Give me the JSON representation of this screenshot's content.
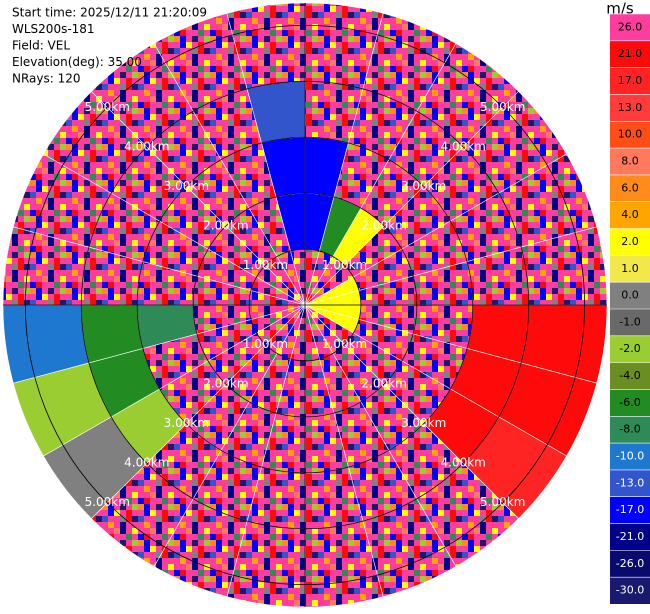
{
  "chart_data": {
    "type": "ppi",
    "header": [
      "Start time: 2025/12/11 21:20:09",
      "WLS200s-181",
      "Field: VEL",
      "Elevation(deg): 35.00",
      "NRays: 120"
    ],
    "colorbar_title": "m/s",
    "colorbar_ticks": [
      {
        "value": 26,
        "label": "26.0"
      },
      {
        "value": 21,
        "label": "21.0"
      },
      {
        "value": 17,
        "label": "17.0"
      },
      {
        "value": 13,
        "label": "13.0"
      },
      {
        "value": 10,
        "label": "10.0"
      },
      {
        "value": 8,
        "label": "8.0"
      },
      {
        "value": 6,
        "label": "6.0"
      },
      {
        "value": 4,
        "label": "4.0"
      },
      {
        "value": 2,
        "label": "2.0"
      },
      {
        "value": 1,
        "label": "1.0"
      },
      {
        "value": 0,
        "label": "0.0"
      },
      {
        "value": -1,
        "label": "-1.0"
      },
      {
        "value": -2,
        "label": "-2.0"
      },
      {
        "value": -4,
        "label": "-4.0"
      },
      {
        "value": -6,
        "label": "-6.0"
      },
      {
        "value": -8,
        "label": "-8.0"
      },
      {
        "value": -10,
        "label": "-10.0"
      },
      {
        "value": -13,
        "label": "-13.0"
      },
      {
        "value": -17,
        "label": "-17.0"
      },
      {
        "value": -21,
        "label": "-21.0"
      },
      {
        "value": -26,
        "label": "-26.0"
      },
      {
        "value": -30,
        "label": "-30.0"
      }
    ],
    "colors": [
      "#ff3d9e",
      "#ff0a0a",
      "#ff2424",
      "#ff3b3b",
      "#ff4d1a",
      "#ff7a5c",
      "#ff8c1a",
      "#ffa500",
      "#ffff00",
      "#f2e84a",
      "#808080",
      "#696969",
      "#9acd32",
      "#6b8e23",
      "#228b22",
      "#2e8b57",
      "#1e78d0",
      "#3355cc",
      "#0000ff",
      "#00008b",
      "#0a0a6e",
      "#191970"
    ],
    "range_rings": [
      {
        "value": 1,
        "label": "1.00km"
      },
      {
        "value": 2,
        "label": "2.00km"
      },
      {
        "value": 3,
        "label": "3.00km"
      },
      {
        "value": 4,
        "label": "4.00km"
      },
      {
        "value": 5,
        "label": "5.00km"
      }
    ],
    "rlim": [
      0,
      5.4
    ],
    "azimuth": [
      0,
      15,
      30,
      45,
      60,
      75,
      90,
      105,
      120,
      135,
      150,
      165,
      180,
      195,
      210,
      225,
      240,
      255,
      270,
      285,
      300,
      315,
      330,
      345,
      360
    ],
    "range_bins": [
      0,
      1,
      2,
      3,
      4,
      5.4
    ],
    "values": [
      [
        null,
        -17,
        -17,
        null,
        null
      ],
      [
        null,
        -6,
        null,
        null,
        null
      ],
      [
        null,
        2,
        null,
        null,
        null
      ],
      [
        null,
        null,
        null,
        null,
        null
      ],
      [
        2,
        null,
        null,
        null,
        null
      ],
      [
        2,
        null,
        null,
        null,
        null
      ],
      [
        2,
        null,
        null,
        21,
        21
      ],
      [
        2,
        null,
        null,
        21,
        21
      ],
      [
        null,
        null,
        null,
        21,
        17
      ],
      [
        null,
        null,
        null,
        null,
        null
      ],
      [
        null,
        null,
        null,
        null,
        null
      ],
      [
        null,
        null,
        null,
        null,
        null
      ],
      [
        null,
        null,
        null,
        null,
        null
      ],
      [
        null,
        null,
        null,
        null,
        null
      ],
      [
        null,
        null,
        null,
        null,
        null
      ],
      [
        null,
        null,
        null,
        -2,
        0
      ],
      [
        null,
        null,
        null,
        -6,
        -2
      ],
      [
        null,
        null,
        -8,
        -6,
        -10
      ],
      [
        null,
        null,
        null,
        null,
        null
      ],
      [
        null,
        null,
        null,
        null,
        null
      ],
      [
        null,
        null,
        null,
        null,
        null
      ],
      [
        null,
        null,
        null,
        null,
        null
      ],
      [
        null,
        null,
        null,
        null,
        null
      ],
      [
        null,
        -17,
        -17,
        -13,
        null
      ]
    ]
  }
}
